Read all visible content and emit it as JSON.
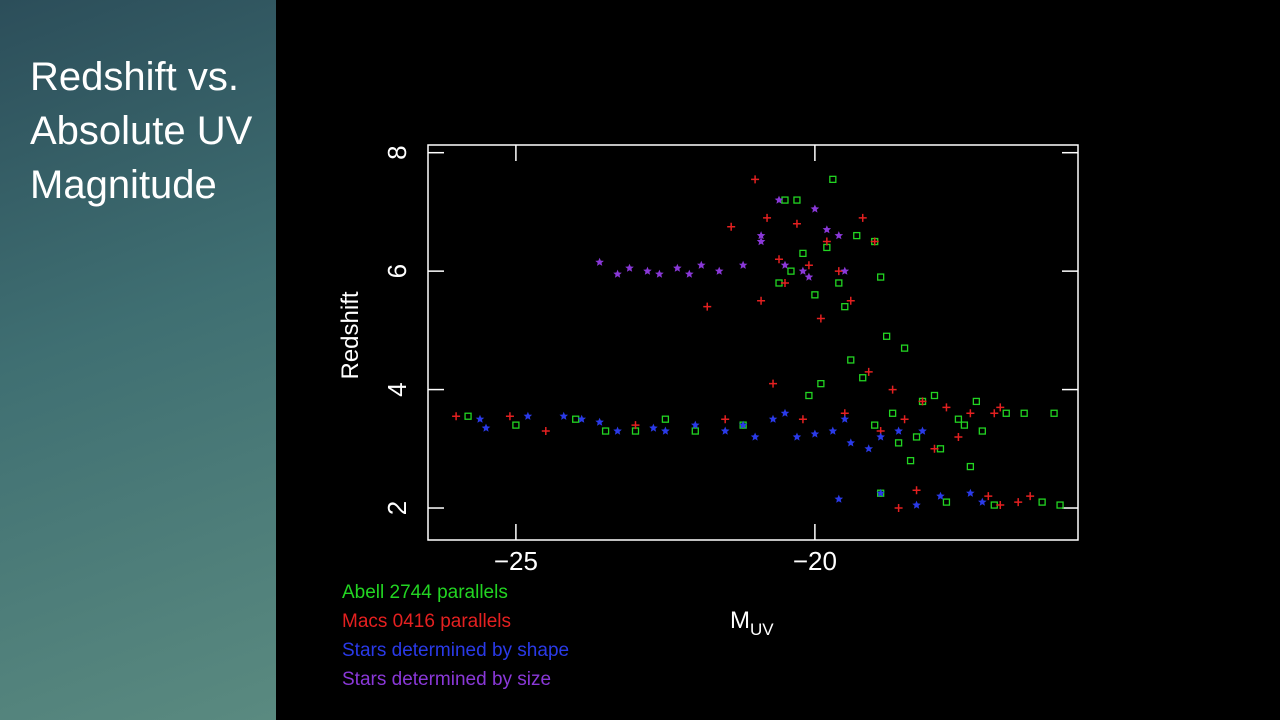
{
  "chart_data": {
    "type": "scatter",
    "title": "Redshift vs. Absolute UV Magnitude",
    "xlabel": "M",
    "xlabel_sub": "UV",
    "ylabel": "Redshift",
    "xlim": [
      -26.47,
      -15.6
    ],
    "ylim": [
      1.46,
      8.13
    ],
    "xticks": [
      {
        "value": -25,
        "label": "−25"
      },
      {
        "value": -20,
        "label": "−20"
      }
    ],
    "yticks": [
      2,
      4,
      6,
      8
    ],
    "series": [
      {
        "name": "Abell 2744 parallels",
        "color": "#22d422",
        "marker": "square",
        "x": [
          -20.5,
          -20.3,
          -19.7,
          -20.2,
          -19.3,
          -19.0,
          -19.6,
          -20.0,
          -20.6,
          -20.4,
          -19.8,
          -19.5,
          -18.9,
          -20.1,
          -19.9,
          -19.4,
          -18.8,
          -18.5,
          -18.2,
          -19.2,
          -18.7,
          -18.0,
          -17.6,
          -17.2,
          -16.8,
          -16.5,
          -18.3,
          -17.9,
          -17.5,
          -19.0,
          -18.6,
          -17.3,
          -16.0,
          -21.2,
          -22.0,
          -23.0,
          -24.0,
          -25.0,
          -25.8,
          -22.5,
          -23.5,
          -18.9,
          -17.8,
          -17.0,
          -16.2,
          -15.9,
          -18.4,
          -17.4
        ],
        "values": [
          7.2,
          7.2,
          7.55,
          6.3,
          6.6,
          6.5,
          5.8,
          5.6,
          5.8,
          6.0,
          6.4,
          5.4,
          5.9,
          3.9,
          4.1,
          4.5,
          4.9,
          4.7,
          3.8,
          4.2,
          3.6,
          3.9,
          3.5,
          3.3,
          3.6,
          3.6,
          3.2,
          3.0,
          3.4,
          3.4,
          3.1,
          3.8,
          3.6,
          3.4,
          3.3,
          3.3,
          3.5,
          3.4,
          3.55,
          3.5,
          3.3,
          2.25,
          2.1,
          2.05,
          2.1,
          2.05,
          2.8,
          2.7
        ]
      },
      {
        "name": "Macs 0416 parallels",
        "color": "#e42020",
        "marker": "plus",
        "x": [
          -21.0,
          -21.4,
          -20.8,
          -20.3,
          -19.8,
          -19.2,
          -19.0,
          -20.6,
          -20.1,
          -19.6,
          -21.8,
          -20.9,
          -19.4,
          -19.9,
          -20.5,
          -20.7,
          -19.1,
          -18.7,
          -18.2,
          -17.8,
          -17.4,
          -17.0,
          -18.5,
          -19.5,
          -18.0,
          -17.6,
          -16.9,
          -18.9,
          -20.2,
          -21.5,
          -23.0,
          -24.5,
          -26.0,
          -25.1,
          -18.3,
          -17.1,
          -16.6,
          -16.4,
          -18.6,
          -16.9
        ],
        "values": [
          7.55,
          6.75,
          6.9,
          6.8,
          6.5,
          6.9,
          6.5,
          6.2,
          6.1,
          6.0,
          5.4,
          5.5,
          5.5,
          5.2,
          5.8,
          4.1,
          4.3,
          4.0,
          3.8,
          3.7,
          3.6,
          3.6,
          3.5,
          3.6,
          3.0,
          3.2,
          3.7,
          3.3,
          3.5,
          3.5,
          3.4,
          3.3,
          3.55,
          3.55,
          2.3,
          2.2,
          2.1,
          2.2,
          2.0,
          2.05
        ]
      },
      {
        "name": "Stars determined by shape",
        "color": "#2a3ae8",
        "marker": "star",
        "x": [
          -25.6,
          -25.5,
          -24.8,
          -24.2,
          -23.9,
          -23.3,
          -22.7,
          -22.0,
          -21.5,
          -21.0,
          -20.7,
          -20.3,
          -20.0,
          -19.7,
          -19.4,
          -19.1,
          -18.9,
          -18.6,
          -21.2,
          -22.5,
          -23.6,
          -20.5,
          -19.5,
          -18.2,
          -19.6,
          -18.9,
          -18.3,
          -17.9,
          -17.4,
          -17.2
        ],
        "values": [
          3.5,
          3.35,
          3.55,
          3.55,
          3.5,
          3.3,
          3.35,
          3.4,
          3.3,
          3.2,
          3.5,
          3.2,
          3.25,
          3.3,
          3.1,
          3.0,
          3.2,
          3.3,
          3.4,
          3.3,
          3.45,
          3.6,
          3.5,
          3.3,
          2.15,
          2.25,
          2.05,
          2.2,
          2.25,
          2.1
        ]
      },
      {
        "name": "Stars determined by size",
        "color": "#8a38d8",
        "marker": "star",
        "x": [
          -23.6,
          -23.3,
          -23.1,
          -22.8,
          -22.6,
          -22.3,
          -22.1,
          -21.9,
          -21.6,
          -21.2,
          -20.9,
          -20.6,
          -20.2,
          -20.0,
          -19.8,
          -19.6,
          -20.9,
          -20.1,
          -19.5,
          -20.5
        ],
        "values": [
          6.15,
          5.95,
          6.05,
          6.0,
          5.95,
          6.05,
          5.95,
          6.1,
          6.0,
          6.1,
          6.6,
          7.2,
          6.0,
          7.05,
          6.7,
          6.6,
          6.5,
          5.9,
          6.0,
          6.1
        ]
      }
    ]
  }
}
